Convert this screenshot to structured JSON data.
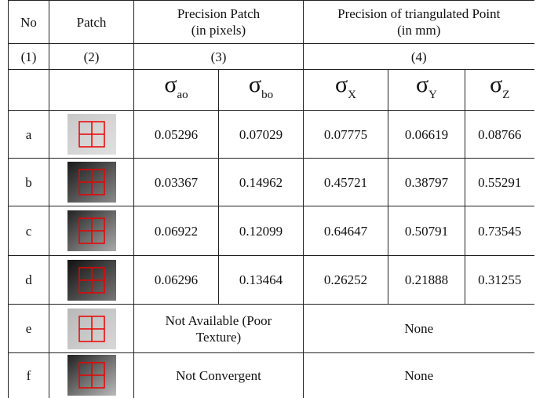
{
  "header": {
    "no": "No",
    "patch": "Patch",
    "precision_patch": [
      "Precision Patch",
      "(in pixels)"
    ],
    "precision_point": [
      "Precision of triangulated Point",
      "(in mm)"
    ]
  },
  "numbering": [
    "(1)",
    "(2)",
    "(3)",
    "(4)"
  ],
  "symbols": [
    {
      "symbol": "σ",
      "sub": "ao"
    },
    {
      "symbol": "σ",
      "sub": "bo"
    },
    {
      "symbol": "σ",
      "sub": "X"
    },
    {
      "symbol": "σ",
      "sub": "Y"
    },
    {
      "symbol": "σ",
      "sub": "Z"
    }
  ],
  "rows": [
    {
      "id": "a",
      "values": [
        0.05296,
        0.07029,
        0.07775,
        0.06619,
        0.08766
      ]
    },
    {
      "id": "b",
      "values": [
        0.03367,
        0.14962,
        0.45721,
        0.38797,
        0.55291
      ]
    },
    {
      "id": "c",
      "values": [
        0.06922,
        0.12099,
        0.64647,
        0.50791,
        0.73545
      ]
    },
    {
      "id": "d",
      "values": [
        0.06296,
        0.13464,
        0.26252,
        0.21888,
        0.31255
      ]
    },
    {
      "id": "e",
      "patch_note": "Not Available (Poor Texture)",
      "point_note": "None"
    },
    {
      "id": "f",
      "patch_note": "Not Convergent",
      "point_note": "None"
    }
  ]
}
